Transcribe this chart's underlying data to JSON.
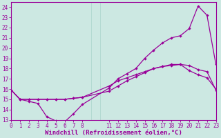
{
  "background_color": "#cce8e2",
  "grid_color": "#aad4cc",
  "line_color": "#990099",
  "xlim": [
    0,
    23
  ],
  "ylim": [
    13,
    24.5
  ],
  "xticks": [
    0,
    1,
    2,
    3,
    4,
    5,
    6,
    7,
    8,
    11,
    12,
    13,
    14,
    15,
    16,
    17,
    18,
    19,
    20,
    21,
    22,
    23
  ],
  "yticks": [
    13,
    14,
    15,
    16,
    17,
    18,
    19,
    20,
    21,
    22,
    23,
    24
  ],
  "curve1_x": [
    0,
    1,
    2,
    3,
    4,
    5,
    6,
    7,
    8,
    11,
    12,
    13,
    14,
    15,
    16,
    17,
    18,
    19,
    20,
    21,
    22,
    23
  ],
  "curve1_y": [
    15.9,
    15.0,
    14.8,
    14.6,
    13.3,
    12.9,
    12.8,
    13.6,
    14.5,
    16.1,
    17.0,
    17.5,
    18.0,
    19.0,
    19.8,
    20.5,
    21.0,
    21.2,
    21.9,
    24.1,
    23.2,
    18.4
  ],
  "curve2_x": [
    0,
    1,
    2,
    3,
    4,
    5,
    6,
    7,
    8,
    11,
    12,
    13,
    14,
    15,
    16,
    17,
    18,
    19,
    20,
    21,
    22,
    23
  ],
  "curve2_y": [
    15.9,
    15.0,
    15.0,
    15.0,
    15.0,
    15.0,
    15.0,
    15.1,
    15.2,
    15.8,
    16.3,
    16.8,
    17.2,
    17.6,
    18.0,
    18.2,
    18.4,
    18.4,
    18.3,
    17.9,
    17.7,
    15.9
  ],
  "curve3_x": [
    0,
    1,
    2,
    3,
    4,
    5,
    6,
    7,
    8,
    11,
    12,
    13,
    14,
    15,
    16,
    17,
    18,
    19,
    20,
    21,
    22,
    23
  ],
  "curve3_y": [
    15.9,
    15.0,
    15.0,
    15.0,
    15.0,
    15.0,
    15.0,
    15.1,
    15.2,
    16.3,
    16.8,
    17.1,
    17.4,
    17.7,
    18.0,
    18.2,
    18.3,
    18.4,
    17.8,
    17.4,
    17.1,
    16.0
  ],
  "xlabel": "Windchill (Refroidissement éolien,°C)",
  "fontsize_tick": 5.5,
  "fontsize_label": 6.5
}
